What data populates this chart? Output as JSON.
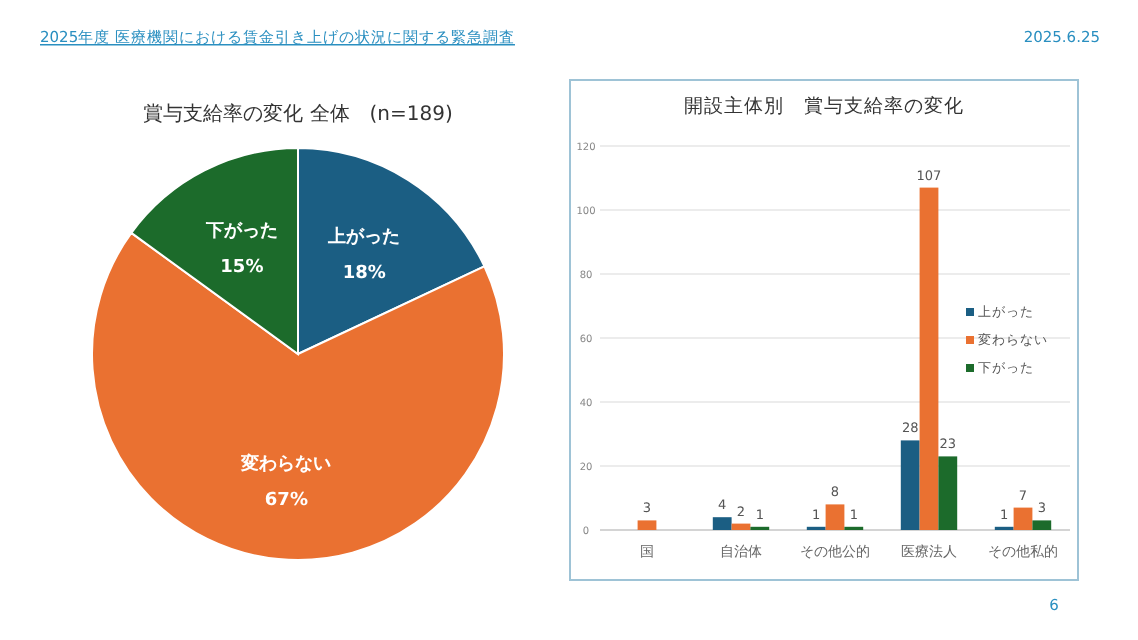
{
  "chart_data": [
    {
      "type": "pie",
      "title": "賞与支給率の変化 全体　(n=189)",
      "categories": [
        "上がった",
        "変わらない",
        "下がった"
      ],
      "values": [
        18,
        67,
        15
      ],
      "colors": [
        "#1b5e83",
        "#ea7131",
        "#1c6b2b"
      ],
      "value_labels": [
        "18%",
        "67%",
        "15%"
      ],
      "annotations": [
        "2025年度 医療機関における賃金引き上げの状況に関する緊急調査",
        "2025.6.25",
        "6"
      ]
    },
    {
      "type": "bar",
      "title": "開設主体別　賞与支給率の変化",
      "categories": [
        "国",
        "自治体",
        "その他公的",
        "医療法人",
        "その他私的"
      ],
      "series": [
        {
          "name": "上がった",
          "color": "#1b5e83",
          "values": [
            0,
            4,
            1,
            28,
            1
          ],
          "value_labels": [
            null,
            "4",
            "1",
            "28",
            "1"
          ]
        },
        {
          "name": "変わらない",
          "color": "#ea7131",
          "values": [
            3,
            2,
            8,
            107,
            7
          ],
          "value_labels": [
            "3",
            "2",
            "8",
            "107",
            "7"
          ]
        },
        {
          "name": "下がった",
          "color": "#1c6b2b",
          "values": [
            0,
            1,
            1,
            23,
            3
          ],
          "value_labels": [
            null,
            "1",
            "1",
            "23",
            "3"
          ]
        }
      ],
      "ylim": [
        0,
        120
      ],
      "yticks": [
        0,
        20,
        40,
        60,
        80,
        100,
        120
      ],
      "grid": "y",
      "legend": "right"
    }
  ]
}
